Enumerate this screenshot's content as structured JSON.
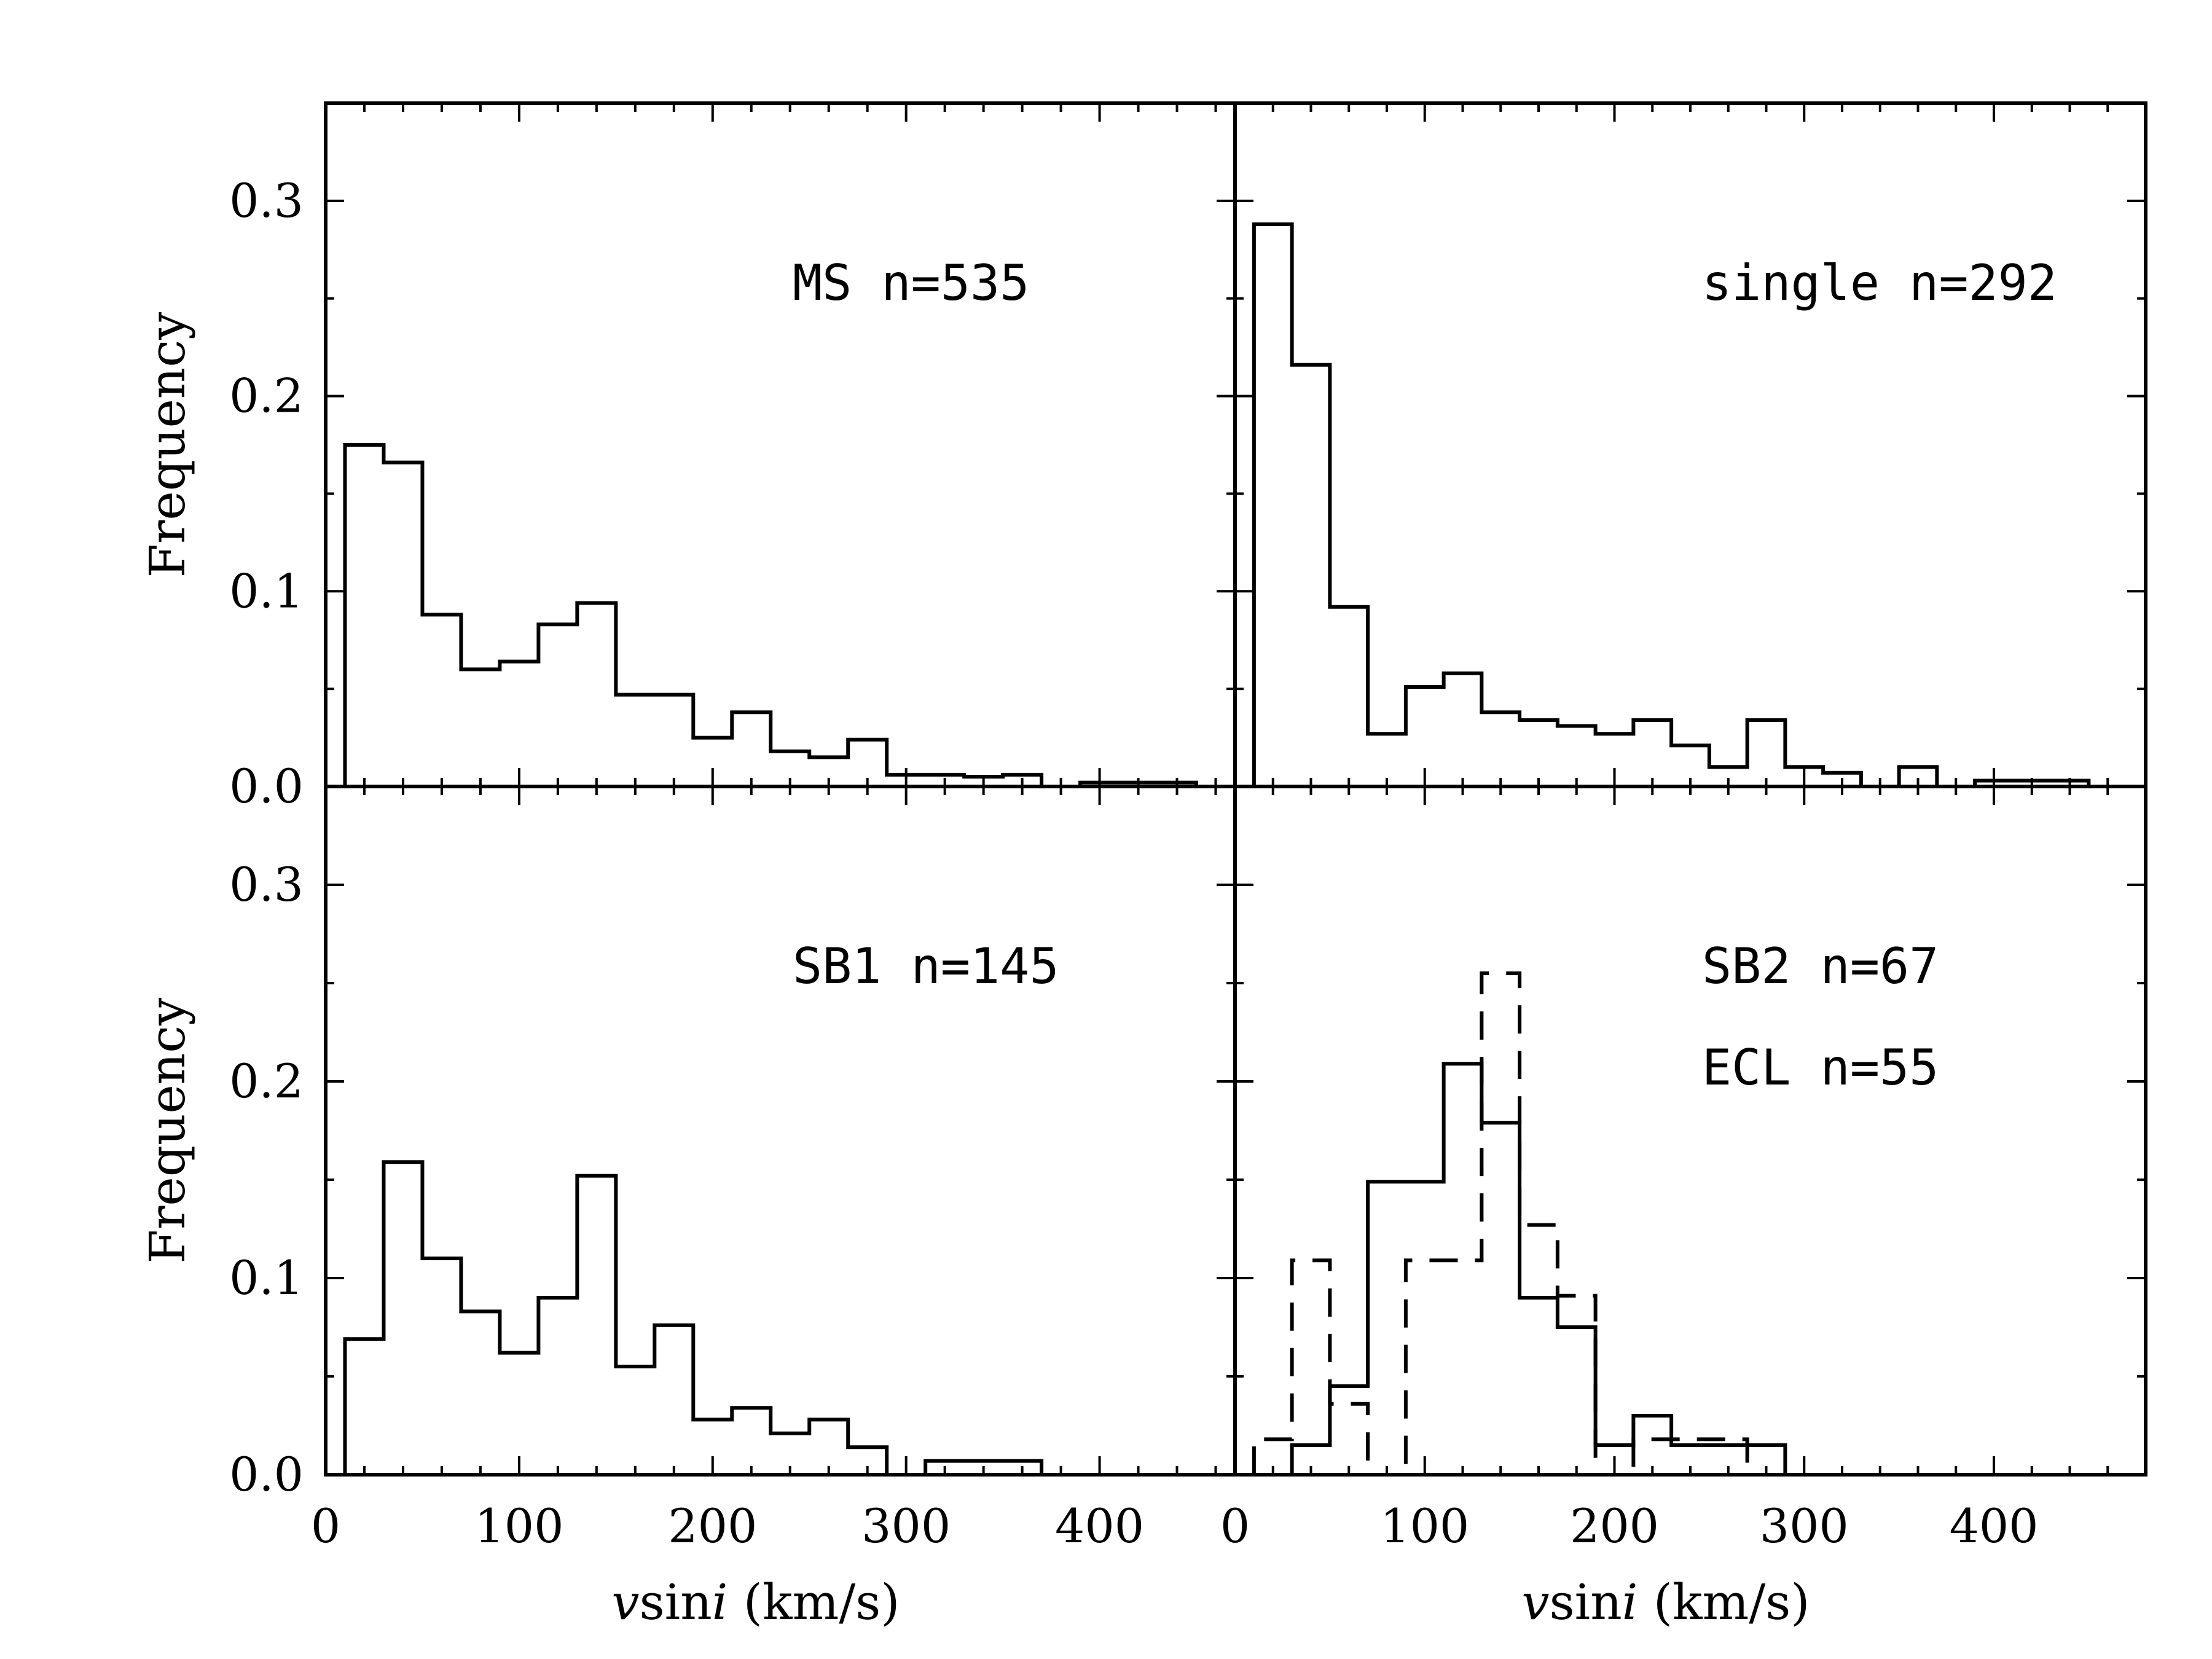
{
  "chart_data": [
    {
      "type": "bar",
      "panel": "top-left",
      "annotations": [
        "MS n=535"
      ],
      "ylabel": "Frequency",
      "xlabel": "",
      "xlim": [
        0,
        470
      ],
      "ylim": [
        0,
        0.35
      ],
      "bin_width": 20,
      "series": [
        {
          "name": "MS",
          "style": "solid",
          "bin_edges": [
            10,
            30,
            50,
            70,
            90,
            110,
            130,
            150,
            170,
            190,
            210,
            230,
            250,
            270,
            290,
            310,
            330,
            350,
            370,
            390,
            410,
            430,
            450
          ],
          "values": [
            0.175,
            0.166,
            0.088,
            0.06,
            0.064,
            0.083,
            0.094,
            0.047,
            0.047,
            0.025,
            0.038,
            0.018,
            0.015,
            0.024,
            0.006,
            0.006,
            0.005,
            0.006,
            0.0,
            0.002,
            0.002,
            0.002
          ]
        }
      ],
      "yticks": [
        "0.0",
        "0.1",
        "0.2",
        "0.3"
      ],
      "ytick_values": [
        0.0,
        0.1,
        0.2,
        0.3
      ],
      "xticks": [],
      "xtick_values": [
        0,
        100,
        200,
        300,
        400
      ]
    },
    {
      "type": "bar",
      "panel": "top-right",
      "annotations": [
        "single n=292"
      ],
      "ylabel": "",
      "xlabel": "",
      "xlim": [
        0,
        480
      ],
      "ylim": [
        0,
        0.35
      ],
      "bin_width": 20,
      "series": [
        {
          "name": "single",
          "style": "solid",
          "bin_edges": [
            10,
            30,
            50,
            70,
            90,
            110,
            130,
            150,
            170,
            190,
            210,
            230,
            250,
            270,
            290,
            310,
            330,
            350,
            370,
            390,
            410,
            430,
            450
          ],
          "values": [
            0.288,
            0.216,
            0.092,
            0.027,
            0.051,
            0.058,
            0.038,
            0.034,
            0.031,
            0.027,
            0.034,
            0.021,
            0.01,
            0.034,
            0.01,
            0.007,
            0.0,
            0.01,
            0.0,
            0.003,
            0.003,
            0.003
          ]
        }
      ],
      "yticks": [],
      "ytick_values": [
        0.0,
        0.1,
        0.2,
        0.3
      ],
      "xticks": [],
      "xtick_values": [
        0,
        100,
        200,
        300,
        400
      ]
    },
    {
      "type": "bar",
      "panel": "bottom-left",
      "annotations": [
        "SB1 n=145"
      ],
      "ylabel": "Frequency",
      "xlabel": "vsini (km/s)",
      "xlabel_parts": [
        "v",
        "sin",
        "i",
        " (km/s)"
      ],
      "xlim": [
        0,
        470
      ],
      "ylim": [
        0,
        0.35
      ],
      "bin_width": 20,
      "series": [
        {
          "name": "SB1",
          "style": "solid",
          "bin_edges": [
            10,
            30,
            50,
            70,
            90,
            110,
            130,
            150,
            170,
            190,
            210,
            230,
            250,
            270,
            290,
            310,
            330,
            350,
            370
          ],
          "values": [
            0.069,
            0.159,
            0.11,
            0.083,
            0.062,
            0.09,
            0.152,
            0.055,
            0.076,
            0.028,
            0.034,
            0.021,
            0.028,
            0.014,
            0.0,
            0.007,
            0.007,
            0.007
          ]
        }
      ],
      "yticks": [
        "0.0",
        "0.1",
        "0.2",
        "0.3"
      ],
      "ytick_values": [
        0.0,
        0.1,
        0.2,
        0.3
      ],
      "xticks": [
        "0",
        "100",
        "200",
        "300",
        "400"
      ],
      "xtick_values": [
        0,
        100,
        200,
        300,
        400
      ]
    },
    {
      "type": "bar",
      "panel": "bottom-right",
      "annotations": [
        "SB2 n=67",
        "ECL n=55"
      ],
      "ylabel": "",
      "xlabel": "vsini (km/s)",
      "xlabel_parts": [
        "v",
        "sin",
        "i",
        " (km/s)"
      ],
      "xlim": [
        0,
        480
      ],
      "ylim": [
        0,
        0.35
      ],
      "bin_width": 20,
      "series": [
        {
          "name": "SB2",
          "style": "solid",
          "bin_edges": [
            30,
            50,
            70,
            90,
            110,
            130,
            150,
            170,
            190,
            210,
            230,
            250,
            270,
            290
          ],
          "values": [
            0.015,
            0.045,
            0.149,
            0.149,
            0.209,
            0.179,
            0.09,
            0.075,
            0.015,
            0.03,
            0.015,
            0.015,
            0.015
          ]
        },
        {
          "name": "ECL",
          "style": "dashed",
          "bin_edges": [
            10,
            30,
            50,
            70,
            90,
            110,
            130,
            150,
            170,
            190,
            210,
            230,
            250,
            270
          ],
          "values": [
            0.018,
            0.109,
            0.036,
            0.0,
            0.109,
            0.109,
            0.255,
            0.127,
            0.091,
            0.0,
            0.018,
            0.018,
            0.018
          ]
        }
      ],
      "yticks": [],
      "ytick_values": [
        0.0,
        0.1,
        0.2,
        0.3
      ],
      "xticks": [
        "0",
        "100",
        "200",
        "300",
        "400"
      ],
      "xtick_values": [
        0,
        100,
        200,
        300,
        400
      ]
    }
  ]
}
